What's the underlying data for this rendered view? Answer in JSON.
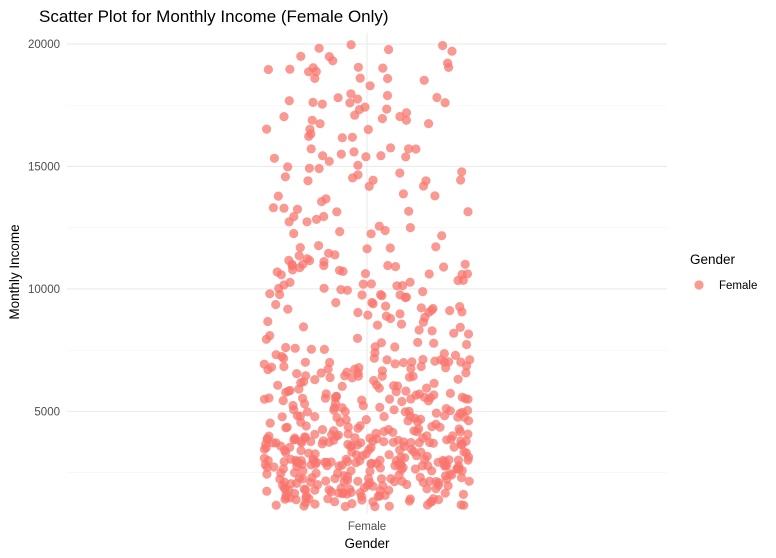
{
  "chart_data": {
    "type": "scatter",
    "title": "Scatter Plot for Monthly Income (Female Only)",
    "xlabel": "Gender",
    "ylabel": "Monthly Income",
    "categories": [
      "Female"
    ],
    "ylim": [
      850,
      20450
    ],
    "yticks": [
      5000,
      10000,
      15000,
      20000
    ],
    "grid": true,
    "jitter": true,
    "legend": {
      "title": "Gender",
      "position": "right",
      "entries": [
        "Female"
      ]
    },
    "colors": {
      "point": "#f8766d",
      "grid": "#ebebeb",
      "text": "#4d4d4d"
    },
    "series": [
      {
        "name": "Female",
        "category": "Female",
        "point_count": 588,
        "y_min": 1129,
        "y_max": 19973
      }
    ]
  }
}
